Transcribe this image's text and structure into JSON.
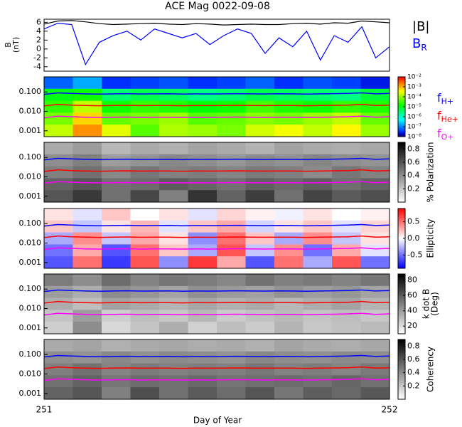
{
  "chart_data": {
    "type": "spectrogram",
    "title": "ACE Mag 0022-09-08",
    "xlabel": "Day of Year",
    "xlim": [
      251,
      252
    ],
    "xticks": [
      251,
      252
    ],
    "x": [
      251.0,
      251.04,
      251.08,
      251.12,
      251.16,
      251.2,
      251.24,
      251.28,
      251.32,
      251.36,
      251.4,
      251.44,
      251.48,
      251.52,
      251.56,
      251.6,
      251.64,
      251.68,
      251.72,
      251.76,
      251.8,
      251.84,
      251.88,
      251.92,
      251.96,
      252.0
    ],
    "b_panel": {
      "ylabel": [
        "B",
        "(nT)"
      ],
      "ylim": [
        -5,
        6.7
      ],
      "yticks": [
        6,
        4,
        2,
        0,
        -2,
        -4
      ],
      "series": [
        {
          "name": "|B|",
          "color": "#000000",
          "values": [
            5.6,
            6.3,
            6.4,
            6.1,
            5.7,
            5.5,
            5.6,
            5.7,
            5.8,
            5.6,
            5.5,
            5.7,
            5.6,
            5.4,
            5.5,
            5.6,
            5.5,
            5.5,
            5.7,
            5.8,
            5.6,
            5.9,
            5.8,
            6.3,
            6.1,
            5.9
          ]
        },
        {
          "name": "B",
          "sub": "R",
          "color": "#0000ff",
          "values": [
            4.5,
            5.8,
            5.5,
            -3.5,
            1.5,
            3.0,
            4.0,
            2.0,
            4.5,
            3.5,
            2.5,
            3.5,
            1.0,
            3.0,
            4.5,
            3.5,
            -1.0,
            2.5,
            0.5,
            4.0,
            -2.5,
            3.0,
            1.5,
            5.0,
            -2.0,
            0.5
          ]
        }
      ]
    },
    "freq_ylim": [
      0.0005,
      0.6
    ],
    "freq_yticks": [
      {
        "value": 0.1,
        "label": "0.100"
      },
      {
        "value": 0.01,
        "label": "0.010"
      },
      {
        "value": 0.001,
        "label": "0.001"
      }
    ],
    "freq_lines": [
      {
        "name": "f",
        "sub": "H+",
        "color": "#0000ff",
        "values": [
          0.075,
          0.09,
          0.085,
          0.08,
          0.078,
          0.08,
          0.082,
          0.079,
          0.08,
          0.081,
          0.078,
          0.08,
          0.079,
          0.08,
          0.082,
          0.08,
          0.079,
          0.081,
          0.08,
          0.078,
          0.08,
          0.082,
          0.085,
          0.09,
          0.08,
          0.085
        ]
      },
      {
        "name": "f",
        "sub": "He+",
        "color": "#ff0000",
        "values": [
          0.019,
          0.023,
          0.021,
          0.02,
          0.0195,
          0.02,
          0.0205,
          0.0198,
          0.02,
          0.0202,
          0.0195,
          0.02,
          0.0198,
          0.02,
          0.0205,
          0.02,
          0.0198,
          0.0202,
          0.02,
          0.0195,
          0.02,
          0.0205,
          0.021,
          0.023,
          0.02,
          0.021
        ]
      },
      {
        "name": "f",
        "sub": "O+",
        "color": "#ff00ff",
        "values": [
          0.0047,
          0.0057,
          0.0053,
          0.005,
          0.0049,
          0.005,
          0.0051,
          0.0049,
          0.005,
          0.005,
          0.0049,
          0.005,
          0.0049,
          0.005,
          0.0051,
          0.005,
          0.0049,
          0.005,
          0.005,
          0.0049,
          0.005,
          0.0051,
          0.0053,
          0.0057,
          0.005,
          0.0053
        ]
      }
    ],
    "spectra": [
      {
        "cmap": "rainbow",
        "clim": [
          -8,
          -2
        ],
        "cticks": [
          {
            "value": -2,
            "label": "10⁻²"
          },
          {
            "value": -3,
            "label": "10⁻³"
          },
          {
            "value": -4,
            "label": "10⁻⁴"
          },
          {
            "value": -5,
            "label": "10⁻⁵"
          },
          {
            "value": -6,
            "label": "10⁻⁶"
          },
          {
            "value": -7,
            "label": "10⁻⁷"
          },
          {
            "value": -8,
            "label": "10⁻⁸"
          }
        ],
        "cells": [
          [
            -7.2,
            -6.8,
            -7.5,
            -7.4,
            -7.3,
            -7.5,
            -7.4,
            -7.2,
            -7.5,
            -7.3,
            -7.4,
            -7.6
          ],
          [
            -5.0,
            -4.8,
            -5.5,
            -5.3,
            -5.4,
            -5.6,
            -5.5,
            -5.3,
            -5.4,
            -5.5,
            -5.6,
            -5.2
          ],
          [
            -4.6,
            -3.8,
            -4.8,
            -4.6,
            -4.7,
            -4.9,
            -4.8,
            -4.5,
            -4.7,
            -4.8,
            -4.6,
            -4.7
          ],
          [
            -4.2,
            -3.2,
            -4.3,
            -4.2,
            -4.0,
            -4.4,
            -4.3,
            -4.1,
            -4.2,
            -4.0,
            -3.8,
            -4.3
          ],
          [
            -3.8,
            -2.8,
            -3.6,
            -4.4,
            -3.9,
            -4.0,
            -4.2,
            -3.7,
            -3.5,
            -3.8,
            -3.4,
            -4.0
          ]
        ]
      },
      {
        "cmap": "gray",
        "clim": [
          0,
          0.9
        ],
        "label": [
          "% Polarization"
        ],
        "cticks": [
          0.8,
          0.6,
          0.4,
          0.2
        ],
        "cells": [
          [
            0.3,
            0.35,
            0.25,
            0.3,
            0.28,
            0.32,
            0.3,
            0.27,
            0.33,
            0.3,
            0.29,
            0.31
          ],
          [
            0.4,
            0.45,
            0.35,
            0.38,
            0.42,
            0.4,
            0.37,
            0.41,
            0.39,
            0.43,
            0.4,
            0.38
          ],
          [
            0.45,
            0.5,
            0.42,
            0.48,
            0.44,
            0.46,
            0.43,
            0.47,
            0.45,
            0.41,
            0.48,
            0.44
          ],
          [
            0.55,
            0.6,
            0.5,
            0.52,
            0.58,
            0.54,
            0.5,
            0.56,
            0.53,
            0.57,
            0.51,
            0.55
          ],
          [
            0.6,
            0.7,
            0.5,
            0.65,
            0.45,
            0.72,
            0.55,
            0.68,
            0.5,
            0.66,
            0.58,
            0.62
          ]
        ]
      },
      {
        "cmap": "bwr",
        "clim": [
          -0.9,
          0.9
        ],
        "label": [
          "Ellipticity"
        ],
        "cticks": [
          0.5,
          {
            "value": 0,
            "label": "0.0"
          },
          -0.5
        ],
        "cells": [
          [
            0.1,
            -0.1,
            0.2,
            0.0,
            0.1,
            -0.1,
            0.15,
            0.05,
            -0.05,
            0.1,
            0.0,
            0.05
          ],
          [
            0.2,
            -0.2,
            0.1,
            0.25,
            -0.1,
            0.2,
            0.3,
            -0.15,
            0.1,
            0.2,
            -0.1,
            0.15
          ],
          [
            -0.3,
            0.4,
            -0.2,
            0.3,
            0.1,
            -0.4,
            0.5,
            0.2,
            -0.3,
            0.4,
            -0.2,
            0.1
          ],
          [
            -0.5,
            0.3,
            -0.6,
            0.5,
            0.2,
            -0.3,
            0.6,
            -0.2,
            0.4,
            -0.5,
            0.3,
            -0.1
          ],
          [
            -0.6,
            0.5,
            -0.7,
            0.6,
            -0.4,
            0.7,
            0.3,
            -0.6,
            0.5,
            -0.3,
            0.6,
            -0.5
          ]
        ]
      },
      {
        "cmap": "gray",
        "clim": [
          10,
          88
        ],
        "label": [
          "k dot B",
          "(Deg)"
        ],
        "cticks": [
          80,
          60,
          40,
          20
        ],
        "cells": [
          [
            50,
            45,
            55,
            48,
            52,
            50,
            47,
            53,
            49,
            51,
            48,
            52
          ],
          [
            40,
            35,
            45,
            42,
            38,
            44,
            41,
            39,
            43,
            40,
            42,
            38
          ],
          [
            35,
            30,
            38,
            36,
            33,
            37,
            34,
            36,
            32,
            35,
            38,
            33
          ],
          [
            28,
            40,
            25,
            30,
            27,
            32,
            26,
            29,
            31,
            28,
            30,
            27
          ],
          [
            25,
            45,
            22,
            28,
            35,
            24,
            30,
            26,
            33,
            27,
            29,
            31
          ]
        ]
      },
      {
        "cmap": "gray",
        "clim": [
          0,
          0.9
        ],
        "label": [
          "Coherency"
        ],
        "cticks": [
          0.8,
          0.6,
          0.4,
          0.2
        ],
        "cells": [
          [
            0.3,
            0.32,
            0.28,
            0.3,
            0.31,
            0.29,
            0.3,
            0.28,
            0.32,
            0.3,
            0.29,
            0.31
          ],
          [
            0.4,
            0.38,
            0.42,
            0.39,
            0.41,
            0.4,
            0.38,
            0.42,
            0.4,
            0.39,
            0.41,
            0.4
          ],
          [
            0.45,
            0.5,
            0.43,
            0.47,
            0.44,
            0.46,
            0.45,
            0.48,
            0.44,
            0.46,
            0.43,
            0.47
          ],
          [
            0.5,
            0.55,
            0.48,
            0.52,
            0.5,
            0.53,
            0.49,
            0.51,
            0.52,
            0.5,
            0.54,
            0.5
          ],
          [
            0.55,
            0.6,
            0.45,
            0.62,
            0.5,
            0.58,
            0.52,
            0.6,
            0.48,
            0.57,
            0.53,
            0.59
          ]
        ]
      }
    ]
  }
}
